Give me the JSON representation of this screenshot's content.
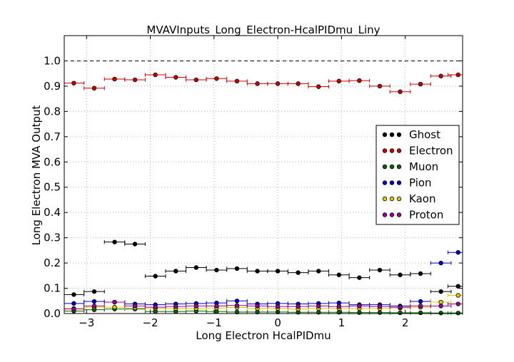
{
  "chart_data": {
    "type": "scatter",
    "title": "MVAVInputs_Long_Electron-HcalPIDmu_Liny",
    "xlabel": "Long Electron HcalPIDmu",
    "ylabel": "Long Electron MVA Output",
    "xlim": [
      -3.35,
      2.9
    ],
    "ylim": [
      0.0,
      1.1
    ],
    "reference_line_y": 1.0,
    "grid": true,
    "legend_position": "center-right",
    "x_ticks": [
      -3,
      -2,
      -1,
      0,
      1,
      2
    ],
    "x_tick_labels": [
      "−3",
      "−2",
      "−1",
      "0",
      "1",
      "2"
    ],
    "y_ticks": [
      0.0,
      0.1,
      0.2,
      0.3,
      0.4,
      0.5,
      0.6,
      0.7,
      0.8,
      0.9,
      1.0
    ],
    "y_tick_labels": [
      "0.0",
      "0.1",
      "0.2",
      "0.3",
      "0.4",
      "0.5",
      "0.6",
      "0.7",
      "0.8",
      "0.9",
      "1.0"
    ],
    "x": [
      -3.2,
      -2.88,
      -2.56,
      -2.24,
      -1.92,
      -1.6,
      -1.28,
      -0.96,
      -0.64,
      -0.32,
      0.0,
      0.32,
      0.64,
      0.96,
      1.28,
      1.6,
      1.92,
      2.24,
      2.56,
      2.83
    ],
    "x_half_width": 0.16,
    "series": [
      {
        "name": "Ghost",
        "color": "#000000",
        "values": [
          0.075,
          0.087,
          0.283,
          0.275,
          0.148,
          0.168,
          0.182,
          0.172,
          0.178,
          0.168,
          0.168,
          0.162,
          0.168,
          0.153,
          0.142,
          0.172,
          0.153,
          0.158,
          0.087,
          0.108
        ]
      },
      {
        "name": "Electron",
        "color": "#cc0000",
        "values": [
          0.912,
          0.892,
          0.928,
          0.925,
          0.945,
          0.935,
          0.925,
          0.93,
          0.92,
          0.91,
          0.91,
          0.91,
          0.898,
          0.92,
          0.922,
          0.9,
          0.878,
          0.908,
          0.94,
          0.945
        ]
      },
      {
        "name": "Muon",
        "color": "#006600",
        "values": [
          0.01,
          0.015,
          0.018,
          0.018,
          0.008,
          0.008,
          0.01,
          0.008,
          0.006,
          0.006,
          0.006,
          0.005,
          0.005,
          0.005,
          0.004,
          0.004,
          0.003,
          0.003,
          0.002,
          0.002
        ]
      },
      {
        "name": "Pion",
        "color": "#0000cc",
        "values": [
          0.04,
          0.048,
          0.045,
          0.038,
          0.035,
          0.038,
          0.04,
          0.042,
          0.05,
          0.038,
          0.04,
          0.038,
          0.04,
          0.042,
          0.035,
          0.035,
          0.03,
          0.048,
          0.2,
          0.242
        ]
      },
      {
        "name": "Kaon",
        "color": "#ddcc00",
        "values": [
          0.02,
          0.025,
          0.025,
          0.022,
          0.02,
          0.02,
          0.02,
          0.022,
          0.024,
          0.02,
          0.02,
          0.018,
          0.02,
          0.02,
          0.02,
          0.02,
          0.022,
          0.025,
          0.045,
          0.072
        ]
      },
      {
        "name": "Proton",
        "color": "#990099",
        "values": [
          0.018,
          0.03,
          0.045,
          0.03,
          0.025,
          0.028,
          0.03,
          0.03,
          0.032,
          0.03,
          0.028,
          0.028,
          0.03,
          0.028,
          0.03,
          0.028,
          0.025,
          0.03,
          0.03,
          0.038
        ]
      }
    ]
  }
}
